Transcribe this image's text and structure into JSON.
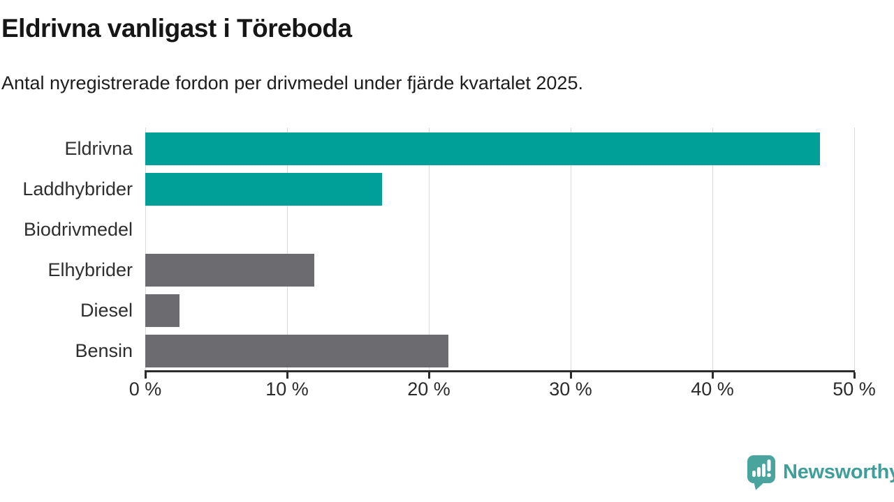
{
  "header": {
    "title": "Eldrivna vanligast i Töreboda",
    "subtitle": "Antal nyregistrerade fordon per drivmedel under fjärde kvartalet 2025."
  },
  "chart_data": {
    "type": "bar",
    "orientation": "horizontal",
    "title": "Eldrivna vanligast i Töreboda",
    "subtitle": "Antal nyregistrerade fordon per drivmedel under fjärde kvartalet 2025.",
    "categories": [
      "Eldrivna",
      "Laddhybrider",
      "Biodrivmedel",
      "Elhybrider",
      "Diesel",
      "Bensin"
    ],
    "values": [
      47.6,
      16.7,
      0,
      11.9,
      2.4,
      21.4
    ],
    "unit": "%",
    "bar_colors": [
      "#00a099",
      "#00a099",
      "#6c6c70",
      "#6c6c70",
      "#6c6c70",
      "#6c6c70"
    ],
    "xlim": [
      0,
      50
    ],
    "x_ticks": [
      0,
      10,
      20,
      30,
      40,
      50
    ],
    "x_tick_labels": [
      "0 %",
      "10 %",
      "20 %",
      "30 %",
      "40 %",
      "50 %"
    ],
    "xlabel": "",
    "ylabel": "",
    "grid": true,
    "legend": false
  },
  "palette": {
    "accent_teal": "#00a099",
    "neutral_gray": "#6c6c70",
    "gridline": "#d9d9d9",
    "axis": "#2b2b2b",
    "logo_teal": "#4aa49e",
    "logo_text_teal": "#3f9e98"
  },
  "footer": {
    "brand": "Newsworthy"
  }
}
